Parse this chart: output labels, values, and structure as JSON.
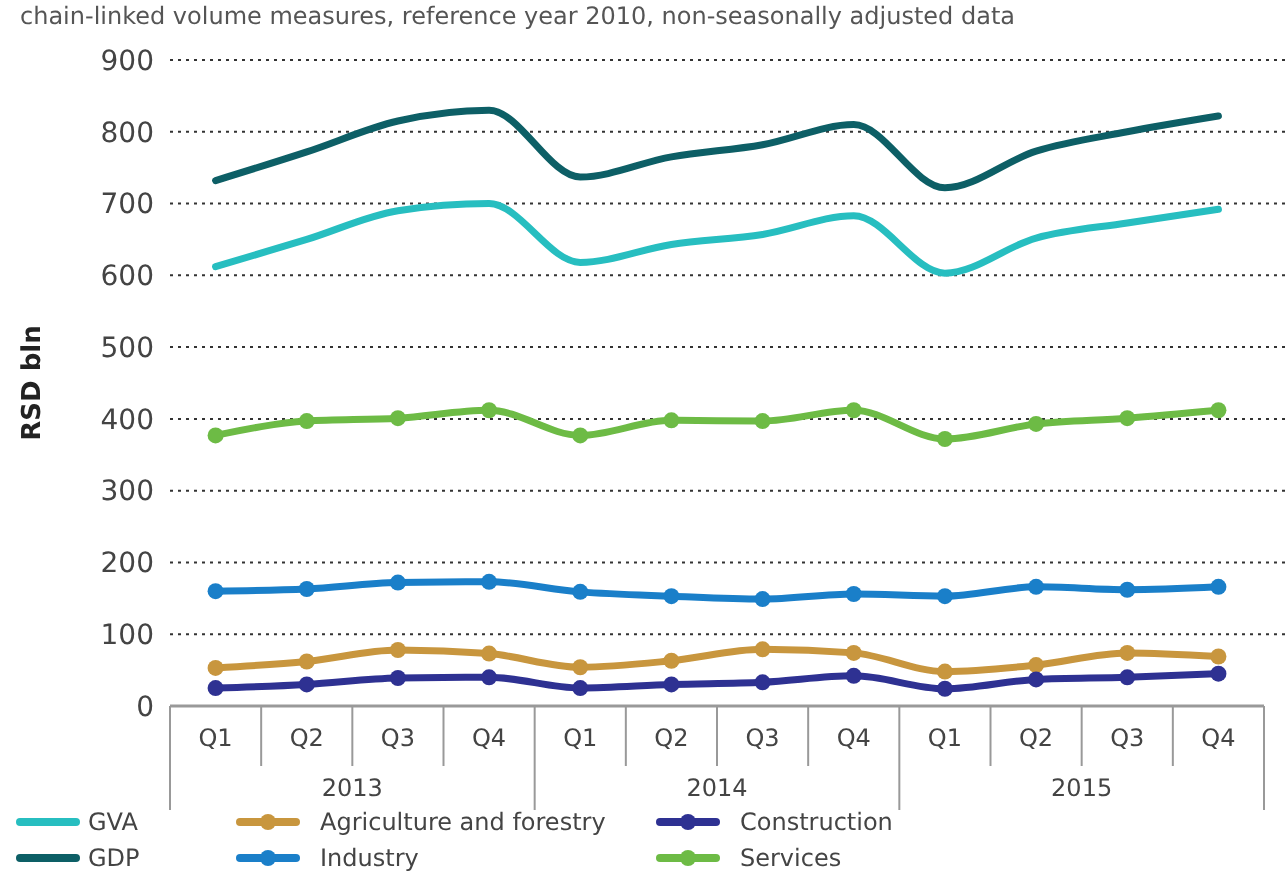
{
  "chart_data": {
    "type": "line",
    "subtitle": "chain-linked volume measures, reference year 2010, non-seasonally adjusted data",
    "ylabel": "RSD bln",
    "categories": [
      "Q1",
      "Q2",
      "Q3",
      "Q4",
      "Q1",
      "Q2",
      "Q3",
      "Q4",
      "Q1",
      "Q2",
      "Q3",
      "Q4"
    ],
    "annotations": [
      "2013",
      "2014",
      "2015"
    ],
    "ylim": [
      0,
      900
    ],
    "yticks": [
      0,
      100,
      200,
      300,
      400,
      500,
      600,
      700,
      800,
      900
    ],
    "grid": "y",
    "legend": "bottom",
    "line_style": "solid",
    "series": [
      {
        "name": "GVA",
        "color": "#27bec0",
        "marker": "none",
        "values": [
          612,
          650,
          690,
          700,
          618,
          643,
          657,
          683,
          603,
          652,
          673,
          692
        ]
      },
      {
        "name": "GDP",
        "color": "#0d5f66",
        "marker": "none",
        "values": [
          732,
          772,
          815,
          830,
          737,
          765,
          782,
          810,
          722,
          773,
          800,
          822
        ]
      },
      {
        "name": "Agriculture and forestry",
        "color": "#c8963e",
        "marker": "circle",
        "values": [
          53,
          62,
          78,
          73,
          54,
          63,
          79,
          74,
          48,
          57,
          74,
          69
        ]
      },
      {
        "name": "Industry",
        "color": "#1a7fc9",
        "marker": "circle",
        "values": [
          160,
          163,
          172,
          173,
          159,
          153,
          149,
          156,
          153,
          166,
          162,
          166
        ]
      },
      {
        "name": "Construction",
        "color": "#2e3192",
        "marker": "circle",
        "values": [
          25,
          30,
          39,
          40,
          25,
          30,
          33,
          42,
          24,
          37,
          40,
          45
        ]
      },
      {
        "name": "Services",
        "color": "#6dbb45",
        "marker": "circle",
        "values": [
          377,
          397,
          401,
          412,
          377,
          398,
          397,
          412,
          372,
          393,
          401,
          412
        ]
      }
    ]
  }
}
